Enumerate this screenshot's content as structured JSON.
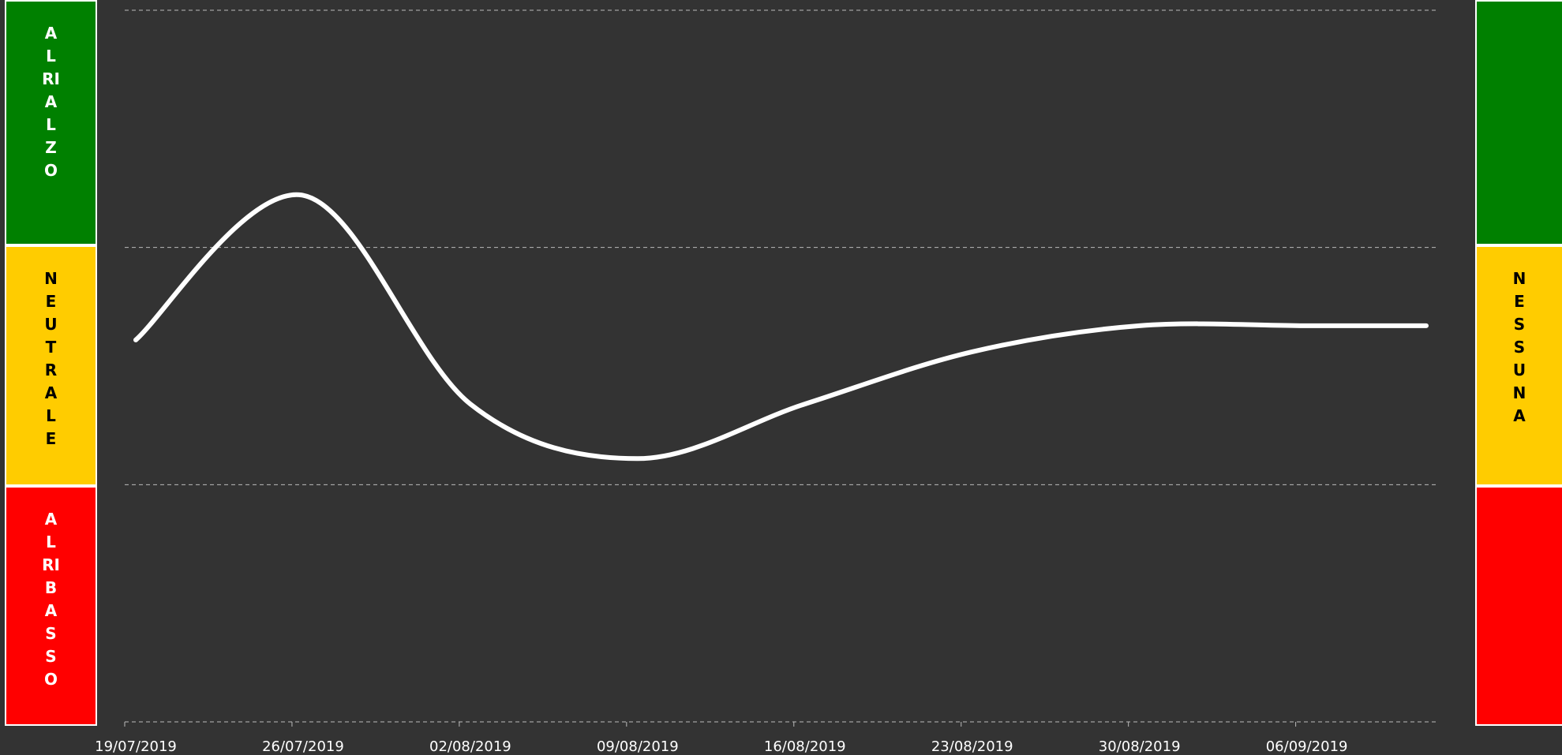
{
  "chart_data": {
    "type": "line",
    "x": [
      "19/07/2019",
      "26/07/2019",
      "02/08/2019",
      "09/08/2019",
      "16/08/2019",
      "23/08/2019",
      "30/08/2019",
      "06/09/2019",
      "11/09/2019"
    ],
    "series": [
      {
        "color": "#ffffff",
        "values": [
          1.61,
          2.22,
          1.34,
          1.11,
          1.34,
          1.56,
          1.67,
          1.67,
          1.67
        ]
      }
    ],
    "xlim": [
      "19/07/2019",
      "11/09/2019"
    ],
    "xticks": [
      "19/07/2019",
      "26/07/2019",
      "02/08/2019",
      "09/08/2019",
      "16/08/2019",
      "23/08/2019",
      "30/08/2019",
      "06/09/2019"
    ],
    "ylim": [
      0,
      3
    ],
    "yticks": [
      0,
      1,
      2,
      3
    ],
    "grid": true
  },
  "left_panel": [
    {
      "label": "AL RIALZO",
      "color": "#008000"
    },
    {
      "label": "NEUTRALE",
      "color": "#ffcc00"
    },
    {
      "label": "AL RIBASSO",
      "color": "#ff0000"
    }
  ],
  "right_panel": [
    {
      "label": "",
      "color": "#008000"
    },
    {
      "label": "NESSUNA",
      "color": "#ffcc00"
    },
    {
      "label": "",
      "color": "#ff0000"
    }
  ]
}
